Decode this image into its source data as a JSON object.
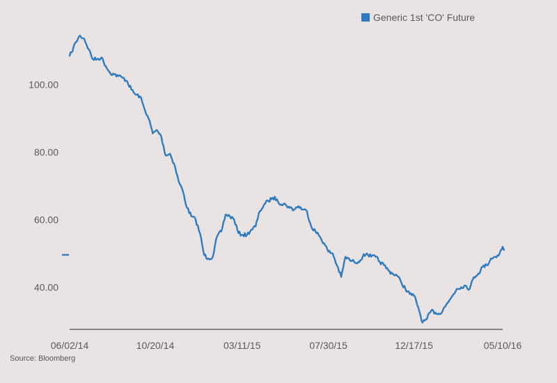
{
  "source_note": "Source: Bloomberg",
  "chart_data": {
    "type": "line",
    "title": "",
    "xlabel": "",
    "ylabel": "",
    "legend": {
      "position": "top-right"
    },
    "grid": false,
    "series_color": "#2e7bbf",
    "background": "#e9e3e3",
    "ylim": [
      27.5,
      115
    ],
    "yticks": [
      40,
      60,
      80,
      100
    ],
    "ytick_labels": [
      "40.00",
      "60.00",
      "80.00",
      "100.00"
    ],
    "xticks": [
      "2014-06-02",
      "2014-10-20",
      "2015-03-11",
      "2015-07-30",
      "2015-12-17",
      "2016-05-10"
    ],
    "xtick_labels": [
      "06/02/14",
      "10/20/14",
      "03/11/15",
      "07/30/15",
      "12/17/15",
      "05/10/16"
    ],
    "series": [
      {
        "name": "Generic 1st 'CO' Future",
        "x": [
          "2014-06-02",
          "2014-06-05",
          "2014-06-12",
          "2014-06-19",
          "2014-06-26",
          "2014-07-03",
          "2014-07-10",
          "2014-07-17",
          "2014-07-24",
          "2014-07-31",
          "2014-08-07",
          "2014-08-14",
          "2014-08-21",
          "2014-08-28",
          "2014-09-04",
          "2014-09-11",
          "2014-09-18",
          "2014-09-25",
          "2014-10-02",
          "2014-10-09",
          "2014-10-16",
          "2014-10-23",
          "2014-10-30",
          "2014-11-06",
          "2014-11-13",
          "2014-11-20",
          "2014-11-27",
          "2014-12-04",
          "2014-12-11",
          "2014-12-18",
          "2014-12-25",
          "2015-01-01",
          "2015-01-08",
          "2015-01-15",
          "2015-01-22",
          "2015-01-29",
          "2015-02-05",
          "2015-02-12",
          "2015-02-19",
          "2015-02-26",
          "2015-03-05",
          "2015-03-12",
          "2015-03-19",
          "2015-03-26",
          "2015-04-02",
          "2015-04-09",
          "2015-04-16",
          "2015-04-23",
          "2015-04-30",
          "2015-05-07",
          "2015-05-14",
          "2015-05-21",
          "2015-05-28",
          "2015-06-04",
          "2015-06-11",
          "2015-06-18",
          "2015-06-25",
          "2015-07-02",
          "2015-07-09",
          "2015-07-16",
          "2015-07-23",
          "2015-07-30",
          "2015-08-06",
          "2015-08-13",
          "2015-08-20",
          "2015-08-27",
          "2015-09-03",
          "2015-09-10",
          "2015-09-17",
          "2015-09-24",
          "2015-10-01",
          "2015-10-08",
          "2015-10-15",
          "2015-10-22",
          "2015-10-29",
          "2015-11-05",
          "2015-11-12",
          "2015-11-19",
          "2015-11-26",
          "2015-12-03",
          "2015-12-10",
          "2015-12-17",
          "2015-12-24",
          "2015-12-31",
          "2016-01-07",
          "2016-01-14",
          "2016-01-21",
          "2016-01-28",
          "2016-02-04",
          "2016-02-11",
          "2016-02-18",
          "2016-02-25",
          "2016-03-03",
          "2016-03-10",
          "2016-03-17",
          "2016-03-24",
          "2016-03-31",
          "2016-04-07",
          "2016-04-14",
          "2016-04-21",
          "2016-04-28",
          "2016-05-05",
          "2016-05-10",
          "2016-05-12"
        ],
        "y": [
          108.5,
          109.5,
          112.5,
          114.5,
          113.5,
          110.5,
          107.5,
          107.5,
          108.0,
          105.5,
          103.5,
          103.0,
          102.5,
          102.0,
          101.0,
          98.5,
          97.0,
          96.5,
          93.0,
          90.0,
          85.5,
          86.5,
          84.5,
          79.0,
          79.5,
          76.5,
          71.5,
          68.5,
          63.5,
          61.0,
          60.0,
          56.0,
          49.5,
          48.5,
          49.0,
          55.0,
          56.5,
          61.5,
          61.0,
          60.0,
          56.0,
          55.5,
          55.5,
          57.0,
          58.0,
          62.5,
          64.5,
          65.5,
          66.5,
          66.0,
          64.5,
          64.5,
          63.5,
          63.0,
          64.0,
          63.0,
          62.5,
          58.0,
          56.5,
          55.0,
          53.0,
          50.5,
          50.0,
          46.5,
          43.0,
          49.0,
          48.0,
          47.5,
          47.5,
          49.0,
          50.0,
          49.0,
          49.0,
          47.5,
          46.5,
          45.0,
          44.0,
          43.5,
          41.5,
          39.5,
          38.0,
          37.5,
          34.0,
          29.5,
          30.5,
          33.0,
          32.5,
          32.0,
          34.0,
          35.5,
          37.5,
          39.5,
          40.0,
          40.5,
          39.5,
          43.0,
          44.0,
          46.0,
          46.5,
          48.5,
          49.0,
          50.0,
          52.0,
          51.0
        ]
      }
    ]
  }
}
